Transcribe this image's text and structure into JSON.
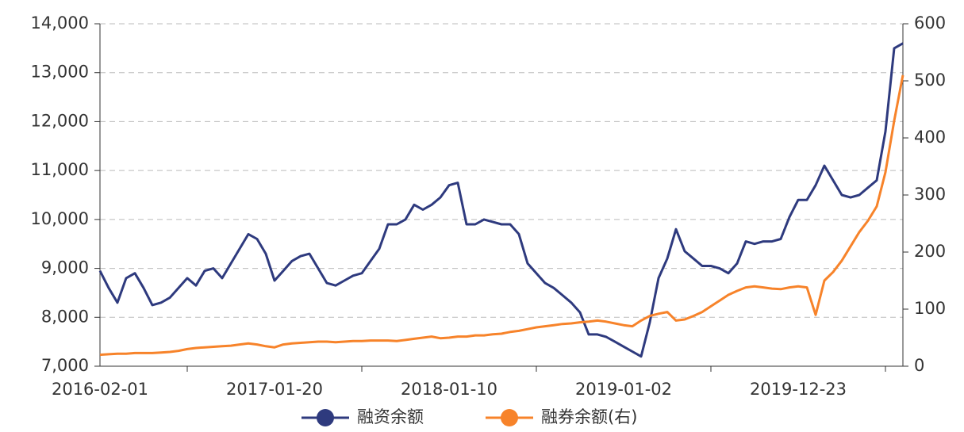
{
  "chart_data": {
    "type": "line",
    "categories": [
      "2016-02-01",
      null,
      null,
      null,
      null,
      null,
      null,
      null,
      null,
      null,
      null,
      null,
      null,
      null,
      null,
      null,
      null,
      null,
      null,
      null,
      "2017-01-20",
      null,
      null,
      null,
      null,
      null,
      null,
      null,
      null,
      null,
      null,
      null,
      null,
      null,
      null,
      null,
      null,
      null,
      null,
      null,
      "2018-01-10",
      null,
      null,
      null,
      null,
      null,
      null,
      null,
      null,
      null,
      null,
      null,
      null,
      null,
      null,
      null,
      null,
      null,
      null,
      null,
      "2019-01-02",
      null,
      null,
      null,
      null,
      null,
      null,
      null,
      null,
      null,
      null,
      null,
      null,
      null,
      null,
      null,
      null,
      null,
      null,
      null,
      "2019-12-23",
      null,
      null,
      null,
      null,
      null,
      null,
      null,
      null,
      null,
      null,
      null,
      null
    ],
    "series": [
      {
        "name": "融资余额",
        "color": "#2e3a7e",
        "values": [
          8950,
          8600,
          8300,
          8800,
          8900,
          8600,
          8250,
          8300,
          8400,
          8600,
          8800,
          8650,
          8950,
          9000,
          8800,
          9100,
          9400,
          9700,
          9600,
          9300,
          8750,
          8950,
          9150,
          9250,
          9300,
          9000,
          8700,
          8650,
          8750,
          8850,
          8900,
          9150,
          9400,
          9900,
          9900,
          10000,
          10300,
          10200,
          10300,
          10450,
          10700,
          10750,
          9900,
          9900,
          10000,
          9950,
          9900,
          9900,
          9700,
          9100,
          8900,
          8700,
          8600,
          8450,
          8300,
          8100,
          7650,
          7650,
          7600,
          7500,
          7400,
          7300,
          7200,
          7900,
          8800,
          9200,
          9800,
          9350,
          9200,
          9050,
          9050,
          9000,
          8900,
          9100,
          9550,
          9500,
          9550,
          9550,
          9600,
          10050,
          10400,
          10400,
          10700,
          11100,
          10800,
          10500,
          10450,
          10500,
          10650,
          10800,
          11800,
          13500,
          13600
        ]
      },
      {
        "name": "融券余额(右)",
        "color": "#f7832a",
        "axis": "y2",
        "values": [
          20,
          21,
          22,
          22,
          23,
          23,
          23,
          24,
          25,
          27,
          30,
          32,
          33,
          34,
          35,
          36,
          38,
          40,
          38,
          35,
          33,
          38,
          40,
          41,
          42,
          43,
          43,
          42,
          43,
          44,
          44,
          45,
          45,
          45,
          44,
          46,
          48,
          50,
          52,
          49,
          50,
          52,
          52,
          54,
          54,
          56,
          57,
          60,
          62,
          65,
          68,
          70,
          72,
          74,
          75,
          77,
          78,
          80,
          78,
          75,
          72,
          70,
          80,
          88,
          92,
          95,
          80,
          82,
          88,
          95,
          105,
          115,
          125,
          132,
          138,
          140,
          138,
          136,
          135,
          138,
          140,
          138,
          90,
          150,
          165,
          185,
          210,
          235,
          255,
          280,
          340,
          430,
          510
        ]
      }
    ],
    "ylim": [
      7000,
      14000
    ],
    "yticks": [
      {
        "value": 7000,
        "label": "7,000"
      },
      {
        "value": 8000,
        "label": "8,000"
      },
      {
        "value": 9000,
        "label": "9,000"
      },
      {
        "value": 10000,
        "label": "10,000"
      },
      {
        "value": 11000,
        "label": "11,000"
      },
      {
        "value": 12000,
        "label": "12,000"
      },
      {
        "value": 13000,
        "label": "13,000"
      },
      {
        "value": 14000,
        "label": "14,000"
      }
    ],
    "y2lim": [
      0,
      600
    ],
    "y2ticks": [
      0,
      100,
      200,
      300,
      400,
      500,
      600
    ],
    "grid": true,
    "legend": "bottom"
  }
}
